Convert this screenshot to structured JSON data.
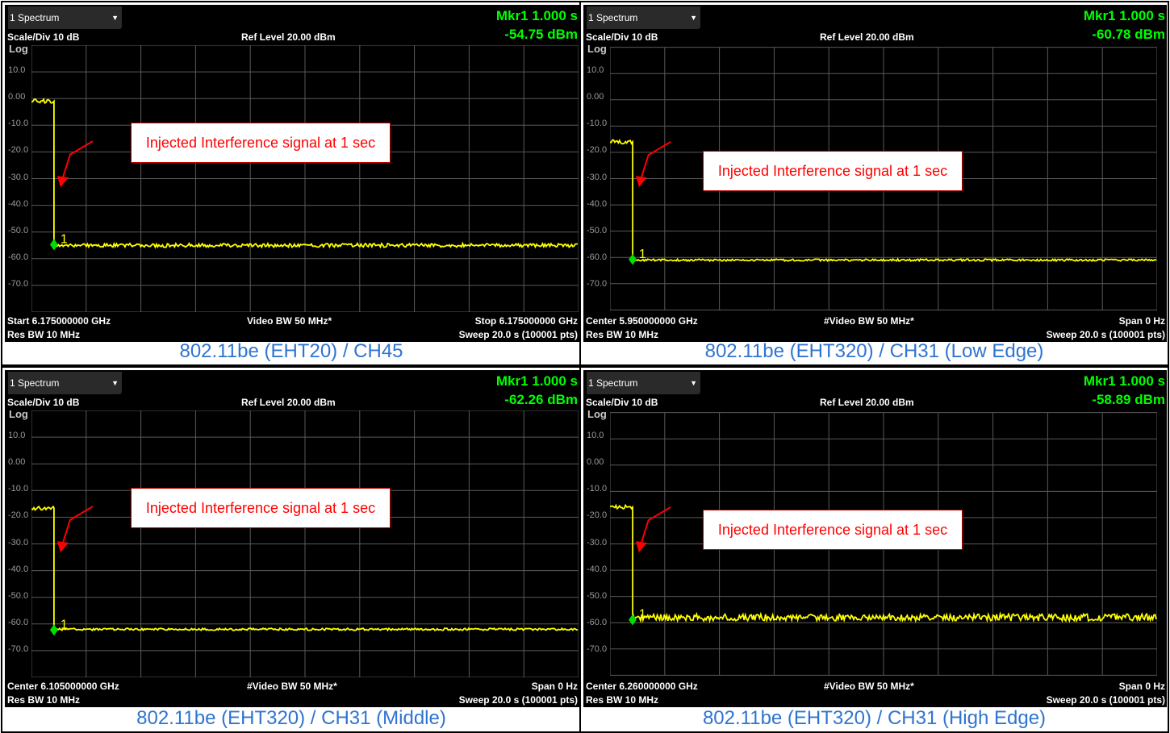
{
  "panels": [
    {
      "dropdown": "1 Spectrum",
      "mkr_label": "Mkr1  1.000 s",
      "mkr_value": "-54.75 dBm",
      "scale": "Scale/Div 10 dB",
      "ref_level": "Ref Level 20.00 dBm",
      "log": "Log",
      "bottom_left_1": "Start 6.175000000 GHz",
      "bottom_left_2": "Res BW 10 MHz",
      "bottom_center": "Video BW 50 MHz*",
      "bottom_right_1": "Stop 6.175000000 GHz",
      "bottom_right_2": "Sweep 20.0 s (100001 pts)",
      "callout": "Injected Interference signal at 1 sec",
      "caption": "802.11be (EHT20) / CH45",
      "marker_num": "1"
    },
    {
      "dropdown": "1 Spectrum",
      "mkr_label": "Mkr1  1.000 s",
      "mkr_value": "-60.78 dBm",
      "scale": "Scale/Div 10 dB",
      "ref_level": "Ref Level 20.00 dBm",
      "log": "Log",
      "bottom_left_1": "Center 5.950000000 GHz",
      "bottom_left_2": "Res BW 10 MHz",
      "bottom_center": "#Video BW 50 MHz*",
      "bottom_right_1": "Span 0 Hz",
      "bottom_right_2": "Sweep 20.0 s (100001 pts)",
      "callout": "Injected Interference signal at 1 sec",
      "caption": "802.11be (EHT320) / CH31 (Low Edge)",
      "marker_num": "1"
    },
    {
      "dropdown": "1 Spectrum",
      "mkr_label": "Mkr1  1.000 s",
      "mkr_value": "-62.26 dBm",
      "scale": "Scale/Div 10 dB",
      "ref_level": "Ref Level 20.00 dBm",
      "log": "Log",
      "bottom_left_1": "Center 6.105000000 GHz",
      "bottom_left_2": "Res BW 10 MHz",
      "bottom_center": "#Video BW 50 MHz*",
      "bottom_right_1": "Span 0 Hz",
      "bottom_right_2": "Sweep 20.0 s (100001 pts)",
      "callout": "Injected Interference signal at 1 sec",
      "caption": "802.11be (EHT320) / CH31 (Middle)",
      "marker_num": "1"
    },
    {
      "dropdown": "1 Spectrum",
      "mkr_label": "Mkr1  1.000 s",
      "mkr_value": "-58.89 dBm",
      "scale": "Scale/Div 10 dB",
      "ref_level": "Ref Level 20.00 dBm",
      "log": "Log",
      "bottom_left_1": "Center 6.260000000 GHz",
      "bottom_left_2": "Res BW 10 MHz",
      "bottom_center": "#Video BW 50 MHz*",
      "bottom_right_1": "Span 0 Hz",
      "bottom_right_2": "Sweep 20.0 s (100001 pts)",
      "callout": "Injected Interference signal at 1 sec",
      "caption": "802.11be (EHT320) / CH31 (High Edge)",
      "marker_num": "1"
    }
  ],
  "y_tick_labels": [
    "10.0",
    "0.00",
    "-10.0",
    "-20.0",
    "-30.0",
    "-40.0",
    "-50.0",
    "-60.0",
    "-70.0"
  ],
  "traces": [
    {
      "pre_level_dbm": -1,
      "post_level_dbm": -55,
      "marker_dbm": -54.75,
      "noise": 0.7
    },
    {
      "pre_level_dbm": -16,
      "post_level_dbm": -61,
      "marker_dbm": -60.78,
      "noise": 0.4
    },
    {
      "pre_level_dbm": -16.5,
      "post_level_dbm": -62,
      "marker_dbm": -62.26,
      "noise": 0.4
    },
    {
      "pre_level_dbm": -16,
      "post_level_dbm": -58,
      "marker_dbm": -58.89,
      "noise": 1.3
    }
  ],
  "colors": {
    "trace": "#ffff00",
    "marker": "#00dd00",
    "grid": "#5a5a5a",
    "arrow": "#ff0000",
    "caption": "#2f74d0"
  }
}
